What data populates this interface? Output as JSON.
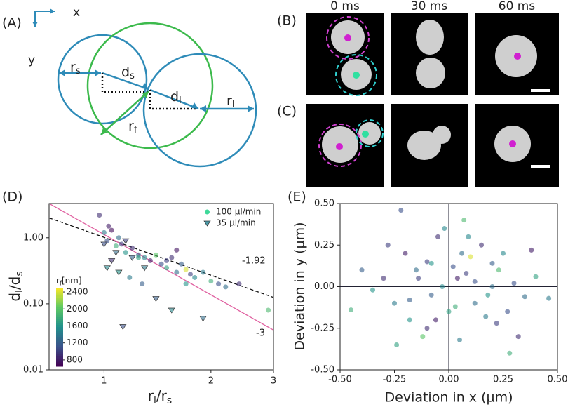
{
  "panel_labels": [
    "(A)",
    "(B)",
    "(C)",
    "(D)",
    "(E)"
  ],
  "diagram": {
    "axis_x": "x",
    "axis_y": "y",
    "labels": [
      {
        "base": "r",
        "sub": "s"
      },
      {
        "base": "d",
        "sub": "s"
      },
      {
        "base": "d",
        "sub": "l"
      },
      {
        "base": "r",
        "sub": "l"
      },
      {
        "base": "r",
        "sub": "f"
      }
    ]
  },
  "images": {
    "times": [
      "0 ms",
      "30 ms",
      "60 ms"
    ]
  },
  "chart_data": [
    {
      "type": "scatter",
      "log_x": true,
      "log_y": true,
      "xlabel": [
        {
          "text": "r"
        },
        {
          "text": "l",
          "sub": true
        },
        {
          "text": "/r"
        },
        {
          "text": "s",
          "sub": true
        }
      ],
      "ylabel": [
        {
          "text": "d"
        },
        {
          "text": "l",
          "sub": true
        },
        {
          "text": "/d"
        },
        {
          "text": "s",
          "sub": true
        }
      ],
      "xlim": [
        0.7,
        3
      ],
      "ylim": [
        0.01,
        3.3
      ],
      "xticks": [
        1,
        2,
        3
      ],
      "yticks": [
        0.01,
        {
          "value": 0.1,
          "label": "0.10"
        },
        {
          "value": 1,
          "label": "1.00"
        }
      ],
      "legend": "upper right",
      "clim": [
        650,
        2500
      ],
      "colorbar": {
        "label": [
          {
            "text": "r"
          },
          {
            "text": "f",
            "sub": true
          },
          {
            "text": "[nm]"
          }
        ],
        "ticks": [
          800,
          1200,
          1600,
          2000,
          2400
        ]
      },
      "series": [
        {
          "name": "100 µl/min",
          "marker": "circle",
          "color": "#3fd99a",
          "x": [
            0.97,
            1.0,
            1.02,
            1.05,
            1.08,
            1.1,
            1.12,
            1.15,
            1.2,
            1.25,
            1.3,
            1.35,
            1.4,
            1.45,
            1.5,
            1.55,
            1.6,
            1.65,
            1.7,
            1.75,
            1.8,
            1.9,
            2.0,
            2.1,
            2.2,
            2.4,
            2.9,
            1.03,
            1.18,
            1.28,
            1.5,
            1.7,
            1.25,
            1.6
          ],
          "values": [
            2.2,
            1.2,
            0.9,
            1.3,
            0.75,
            1.0,
            0.8,
            0.6,
            0.7,
            0.55,
            0.5,
            0.45,
            0.55,
            0.4,
            0.35,
            0.5,
            0.3,
            0.4,
            0.33,
            0.28,
            0.25,
            0.3,
            0.22,
            0.2,
            0.18,
            0.2,
            0.08,
            1.5,
            0.25,
            0.2,
            0.45,
            0.2,
            0.5,
            0.65
          ],
          "c": [
            900,
            1400,
            1100,
            700,
            1800,
            1300,
            1000,
            1600,
            900,
            1200,
            1500,
            800,
            2000,
            1100,
            1700,
            900,
            1300,
            1200,
            2400,
            1000,
            1500,
            1400,
            1800,
            1100,
            1300,
            900,
            1900,
            800,
            1400,
            1200,
            1000,
            1600,
            1700,
            750
          ]
        },
        {
          "name": "35 µl/min",
          "marker": "triangle",
          "color": "#4a9aa8",
          "x": [
            1.0,
            1.02,
            1.05,
            1.08,
            1.1,
            1.15,
            1.2,
            1.3,
            1.55,
            1.9,
            1.13,
            1.4
          ],
          "values": [
            0.8,
            0.35,
            0.45,
            0.6,
            0.3,
            0.9,
            0.5,
            0.35,
            0.08,
            0.06,
            0.045,
            0.12
          ],
          "c": [
            1100,
            1500,
            900,
            1300,
            1600,
            1000,
            1200,
            1400,
            1500,
            1300,
            1100,
            1200
          ]
        }
      ],
      "fits": [
        {
          "slope": -1.92,
          "color": "#111111",
          "dashed": true,
          "x": [
            0.7,
            3
          ],
          "y": [
            2.0,
            0.125
          ]
        },
        {
          "slope": -3,
          "color": "#e060a0",
          "dashed": false,
          "x": [
            0.7,
            3
          ],
          "y": [
            3.3,
            0.04
          ]
        }
      ]
    },
    {
      "type": "scatter",
      "xlabel": "Deviation in x (µm)",
      "ylabel": "Deviation in y (µm)",
      "xlim": [
        -0.5,
        0.5
      ],
      "ylim": [
        -0.5,
        0.5
      ],
      "xticks": [
        {
          "value": -0.5,
          "label": "-0.50"
        },
        {
          "value": -0.25,
          "label": "-0.25"
        },
        {
          "value": 0,
          "label": "0.00"
        },
        {
          "value": 0.25,
          "label": "0.25"
        },
        {
          "value": 0.5,
          "label": "0.50"
        }
      ],
      "yticks": [
        {
          "value": -0.5,
          "label": "-0.50"
        },
        {
          "value": -0.25,
          "label": "-0.25"
        },
        {
          "value": 0,
          "label": "0.00"
        },
        {
          "value": 0.25,
          "label": "0.25"
        },
        {
          "value": 0.5,
          "label": "0.50"
        }
      ],
      "clim": [
        650,
        2500
      ],
      "series": [
        {
          "x": [
            -0.45,
            -0.3,
            -0.25,
            -0.22,
            -0.2,
            -0.18,
            -0.15,
            -0.12,
            -0.1,
            -0.08,
            -0.05,
            -0.03,
            0.0,
            0.02,
            0.04,
            0.05,
            0.07,
            0.08,
            0.1,
            0.12,
            0.15,
            0.18,
            0.2,
            0.22,
            0.25,
            0.28,
            0.3,
            0.35,
            0.38,
            0.4,
            0.46,
            -0.35,
            -0.28,
            -0.18,
            -0.1,
            -0.02,
            0.03,
            0.06,
            0.12,
            0.17,
            0.23,
            0.32,
            -0.4,
            -0.24,
            -0.14,
            -0.06,
            0.09,
            0.2,
            0.27,
            -0.08
          ],
          "values": [
            -0.14,
            0.05,
            -0.1,
            0.46,
            0.2,
            -0.2,
            0.1,
            -0.3,
            0.15,
            -0.05,
            0.3,
            0.0,
            -0.15,
            0.12,
            0.05,
            -0.32,
            0.4,
            0.08,
            0.18,
            -0.1,
            0.25,
            -0.05,
            0.14,
            -0.22,
            0.2,
            -0.4,
            0.02,
            -0.06,
            0.22,
            0.06,
            -0.07,
            -0.02,
            0.25,
            -0.08,
            -0.25,
            0.35,
            -0.12,
            0.2,
            0.03,
            -0.18,
            0.1,
            -0.3,
            0.1,
            -0.35,
            0.05,
            -0.2,
            0.3,
            0.0,
            -0.15,
            0.14
          ],
          "c": [
            1800,
            900,
            1400,
            1100,
            800,
            1600,
            1300,
            2000,
            1000,
            1200,
            900,
            1500,
            1700,
            1100,
            800,
            1400,
            1900,
            1000,
            2400,
            1300,
            900,
            1600,
            1200,
            1000,
            1500,
            1800,
            1100,
            1300,
            800,
            1700,
            1400,
            1600,
            1000,
            1200,
            900,
            1500,
            1800,
            1300,
            1100,
            1400,
            1900,
            900,
            1200,
            1700,
            1000,
            800,
            1500,
            1300,
            1100,
            1600
          ]
        }
      ]
    }
  ]
}
